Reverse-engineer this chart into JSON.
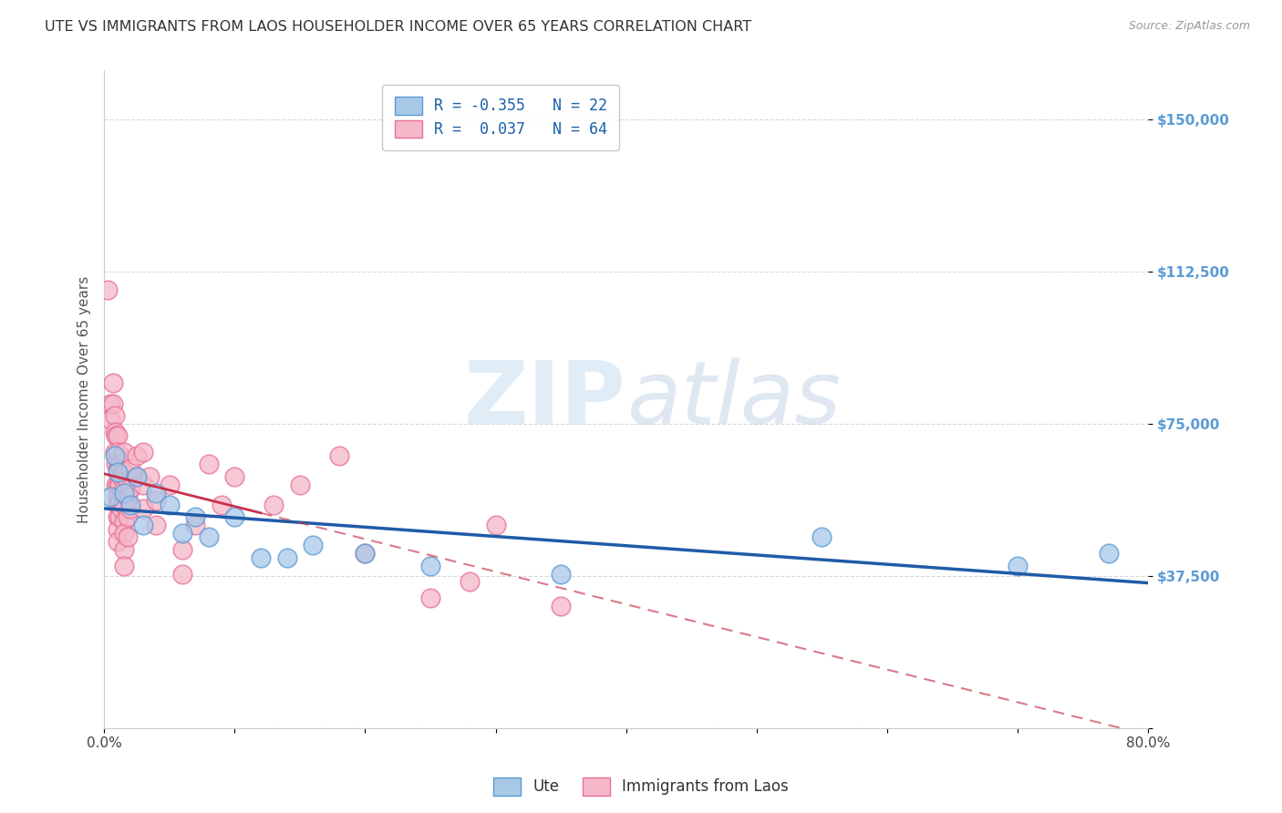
{
  "title": "UTE VS IMMIGRANTS FROM LAOS HOUSEHOLDER INCOME OVER 65 YEARS CORRELATION CHART",
  "source": "Source: ZipAtlas.com",
  "ylabel": "Householder Income Over 65 years",
  "y_ticks": [
    0,
    37500,
    75000,
    112500,
    150000
  ],
  "y_tick_labels": [
    "",
    "$37,500",
    "$75,000",
    "$112,500",
    "$150,000"
  ],
  "x_min": 0.0,
  "x_max": 0.8,
  "y_min": 0,
  "y_max": 162000,
  "group1_label": "Ute",
  "group2_label": "Immigrants from Laos",
  "group1_color": "#a8c8e8",
  "group2_color": "#f5b8c8",
  "group1_edge_color": "#5b9bd5",
  "group2_edge_color": "#e8709a",
  "group1_line_color": "#1f5ba8",
  "group2_line_color": "#c8304a",
  "group2_line_solid_end": 0.12,
  "watermark_zip": "ZIP",
  "watermark_atlas": "atlas",
  "background_color": "#ffffff",
  "grid_color": "#d0d0d0",
  "title_color": "#333333",
  "source_color": "#999999",
  "tick_label_color": "#5b9bd5",
  "ute_points": [
    [
      0.005,
      57000
    ],
    [
      0.008,
      67000
    ],
    [
      0.01,
      63000
    ],
    [
      0.015,
      58000
    ],
    [
      0.02,
      55000
    ],
    [
      0.025,
      62000
    ],
    [
      0.03,
      50000
    ],
    [
      0.04,
      58000
    ],
    [
      0.05,
      55000
    ],
    [
      0.06,
      48000
    ],
    [
      0.07,
      52000
    ],
    [
      0.08,
      47000
    ],
    [
      0.1,
      52000
    ],
    [
      0.12,
      42000
    ],
    [
      0.14,
      42000
    ],
    [
      0.16,
      45000
    ],
    [
      0.2,
      43000
    ],
    [
      0.25,
      40000
    ],
    [
      0.35,
      38000
    ],
    [
      0.55,
      47000
    ],
    [
      0.7,
      40000
    ],
    [
      0.77,
      43000
    ]
  ],
  "laos_points": [
    [
      0.003,
      108000
    ],
    [
      0.005,
      80000
    ],
    [
      0.005,
      76000
    ],
    [
      0.007,
      85000
    ],
    [
      0.007,
      80000
    ],
    [
      0.008,
      77000
    ],
    [
      0.008,
      73000
    ],
    [
      0.008,
      68000
    ],
    [
      0.009,
      72000
    ],
    [
      0.009,
      65000
    ],
    [
      0.009,
      60000
    ],
    [
      0.01,
      72000
    ],
    [
      0.01,
      68000
    ],
    [
      0.01,
      64000
    ],
    [
      0.01,
      60000
    ],
    [
      0.01,
      57000
    ],
    [
      0.01,
      55000
    ],
    [
      0.01,
      52000
    ],
    [
      0.01,
      49000
    ],
    [
      0.01,
      46000
    ],
    [
      0.012,
      65000
    ],
    [
      0.012,
      60000
    ],
    [
      0.012,
      56000
    ],
    [
      0.012,
      52000
    ],
    [
      0.013,
      62000
    ],
    [
      0.013,
      58000
    ],
    [
      0.013,
      54000
    ],
    [
      0.015,
      68000
    ],
    [
      0.015,
      63000
    ],
    [
      0.015,
      59000
    ],
    [
      0.015,
      55000
    ],
    [
      0.015,
      51000
    ],
    [
      0.015,
      48000
    ],
    [
      0.015,
      44000
    ],
    [
      0.015,
      40000
    ],
    [
      0.018,
      61000
    ],
    [
      0.018,
      57000
    ],
    [
      0.018,
      52000
    ],
    [
      0.018,
      47000
    ],
    [
      0.02,
      64000
    ],
    [
      0.02,
      59000
    ],
    [
      0.02,
      54000
    ],
    [
      0.025,
      67000
    ],
    [
      0.025,
      62000
    ],
    [
      0.03,
      68000
    ],
    [
      0.03,
      60000
    ],
    [
      0.03,
      54000
    ],
    [
      0.035,
      62000
    ],
    [
      0.04,
      56000
    ],
    [
      0.04,
      50000
    ],
    [
      0.05,
      60000
    ],
    [
      0.06,
      44000
    ],
    [
      0.06,
      38000
    ],
    [
      0.07,
      50000
    ],
    [
      0.08,
      65000
    ],
    [
      0.09,
      55000
    ],
    [
      0.1,
      62000
    ],
    [
      0.13,
      55000
    ],
    [
      0.15,
      60000
    ],
    [
      0.18,
      67000
    ],
    [
      0.2,
      43000
    ],
    [
      0.25,
      32000
    ],
    [
      0.28,
      36000
    ],
    [
      0.3,
      50000
    ],
    [
      0.35,
      30000
    ]
  ]
}
